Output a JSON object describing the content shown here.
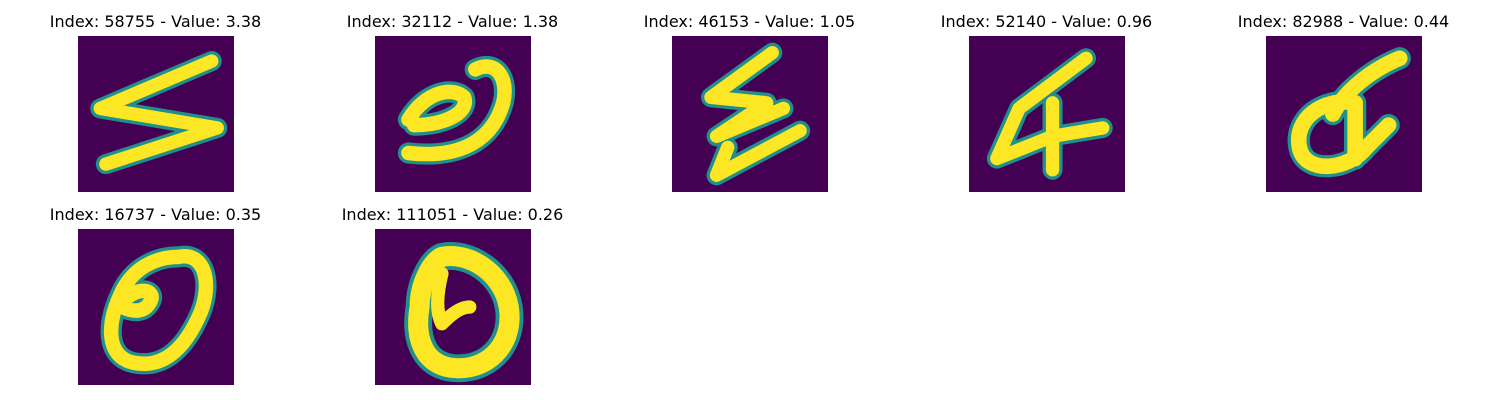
{
  "colors": {
    "background": "#440154",
    "edge": "#21908c",
    "mid": "#5ec962",
    "stroke": "#fde725"
  },
  "tiles": [
    {
      "caption": "Index: 58755 - Value: 3.38",
      "icon": "digit-glyph-image"
    },
    {
      "caption": "Index: 32112 - Value: 1.38",
      "icon": "digit-glyph-image"
    },
    {
      "caption": "Index: 46153 - Value: 1.05",
      "icon": "digit-glyph-image"
    },
    {
      "caption": "Index: 52140 - Value: 0.96",
      "icon": "digit-glyph-image"
    },
    {
      "caption": "Index: 82988 - Value: 0.44",
      "icon": "digit-glyph-image"
    },
    {
      "caption": "Index: 16737 - Value: 0.35",
      "icon": "digit-glyph-image"
    },
    {
      "caption": "Index: 111051 - Value: 0.26",
      "icon": "digit-glyph-image"
    }
  ]
}
